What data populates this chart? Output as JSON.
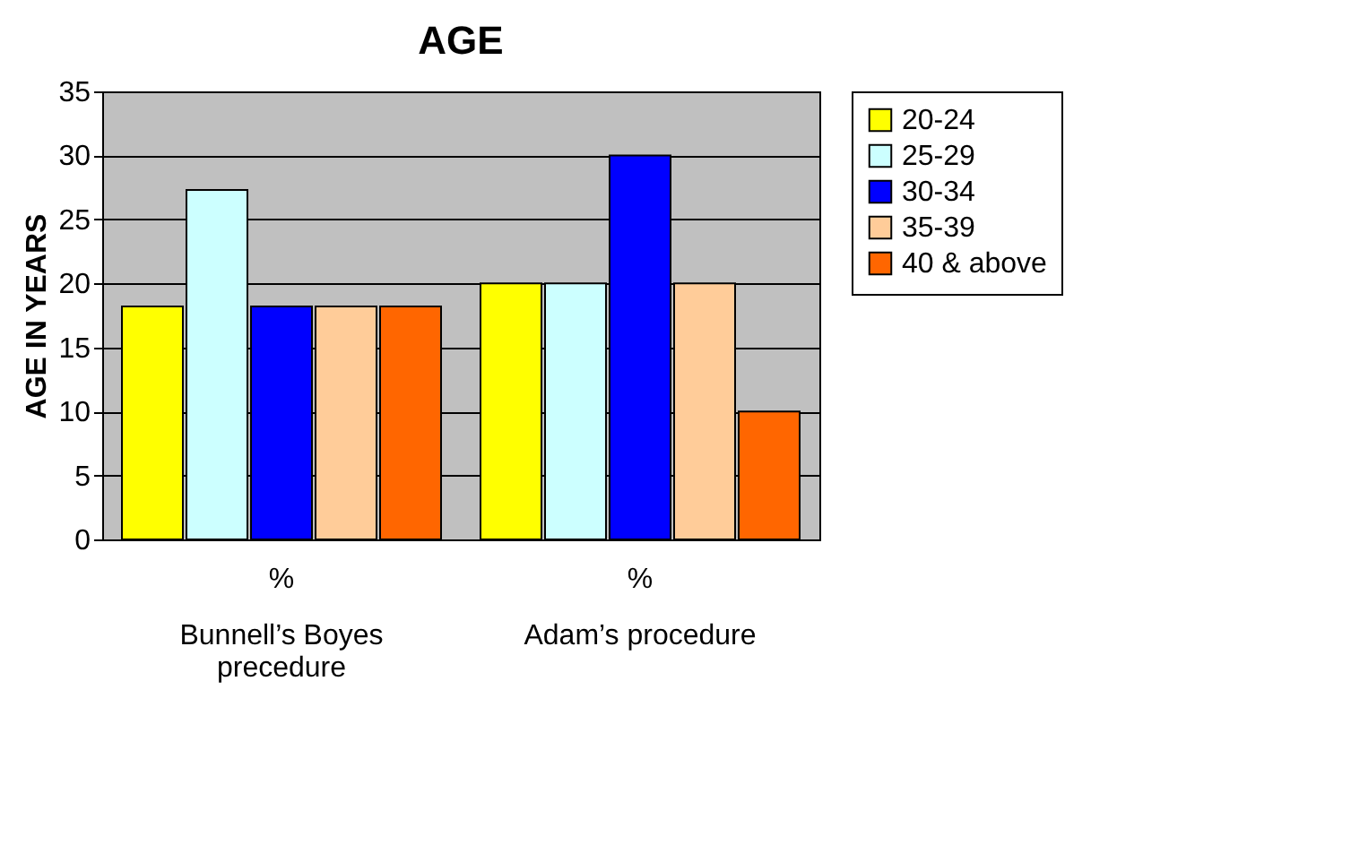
{
  "chart_data": {
    "type": "bar",
    "title": "AGE",
    "ylabel": "AGE IN YEARS",
    "categories": [
      "Bunnell’s Boyes precedure",
      "Adam’s procedure"
    ],
    "series": [
      {
        "name": "20-24",
        "color": "#ffff00",
        "values": [
          18.2,
          20
        ]
      },
      {
        "name": "25-29",
        "color": "#ccffff",
        "values": [
          27.3,
          20
        ]
      },
      {
        "name": "30-34",
        "color": "#0000ff",
        "values": [
          18.2,
          30
        ]
      },
      {
        "name": "35-39",
        "color": "#ffcc99",
        "values": [
          18.2,
          20
        ]
      },
      {
        "name": "40 & above",
        "color": "#ff6600",
        "values": [
          18.2,
          10
        ]
      }
    ],
    "annotations": [
      "%",
      "%"
    ],
    "ylim": [
      0,
      35
    ],
    "yticks": [
      0,
      5,
      10,
      15,
      20,
      25,
      30,
      35
    ],
    "grid": "y",
    "legend": "right"
  }
}
